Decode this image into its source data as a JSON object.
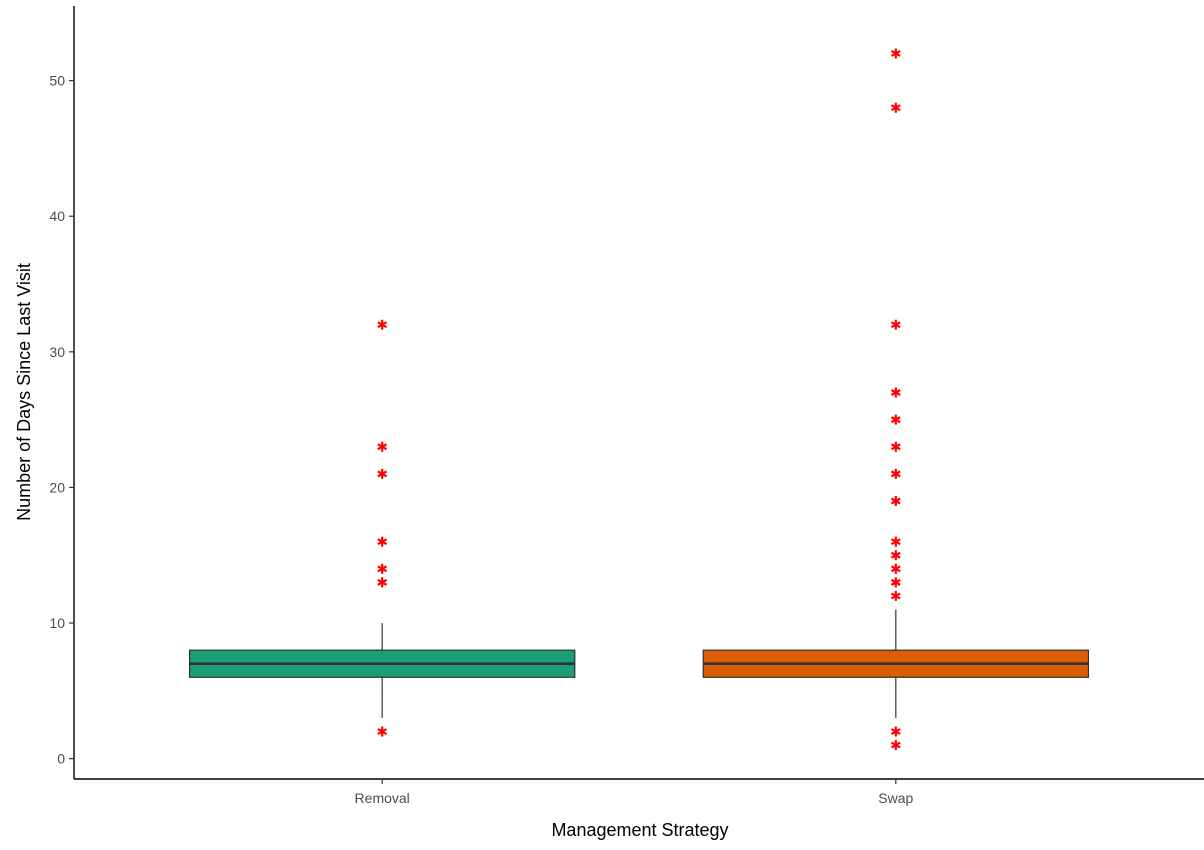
{
  "chart_data": {
    "type": "box",
    "title": "",
    "xlabel": "Management Strategy",
    "ylabel": "Number of Days Since Last Visit",
    "ylim": [
      -1.5,
      55.5
    ],
    "yticks": [
      0,
      10,
      20,
      30,
      40,
      50
    ],
    "ytick_labels": [
      "0",
      "10",
      "20",
      "30",
      "40",
      "50"
    ],
    "categories": [
      "Removal",
      "Swap"
    ],
    "grid": false,
    "legend": "none",
    "boxes": [
      {
        "category": "Removal",
        "fill": "#1b9e77",
        "q1": 6,
        "median": 7,
        "q3": 8,
        "whisker_low": 3,
        "whisker_high": 10,
        "outliers": [
          2,
          13,
          14,
          16,
          21,
          23,
          32
        ]
      },
      {
        "category": "Swap",
        "fill": "#d95f02",
        "q1": 6,
        "median": 7,
        "q3": 8,
        "whisker_low": 3,
        "whisker_high": 11,
        "outliers": [
          1,
          2,
          12,
          13,
          14,
          15,
          16,
          19,
          21,
          23,
          25,
          27,
          32,
          48,
          52
        ]
      }
    ],
    "outlier_color": "#ff0000",
    "outlier_shape": "asterisk"
  }
}
